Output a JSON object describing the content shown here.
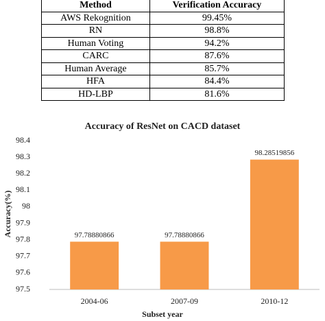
{
  "table": {
    "header": [
      "Method",
      "Verification Accuracy"
    ],
    "rows": [
      [
        "AWS Rekognition",
        "99.45%"
      ],
      [
        "RN",
        "98.8%"
      ],
      [
        "Human Voting",
        "94.2%"
      ],
      [
        "CARC",
        "87.6%"
      ],
      [
        "Human Average",
        "85.7%"
      ],
      [
        "HFA",
        "84.4%"
      ],
      [
        "HD-LBP",
        "81.6%"
      ]
    ]
  },
  "chart_data": {
    "type": "bar",
    "title": "Accuracy of ResNet on CACD dataset",
    "x_label": "Subset year",
    "y_label": "Accuracy(%)",
    "categories": [
      "2004-06",
      "2007-09",
      "2010-12"
    ],
    "values": [
      97.78880866,
      97.78880866,
      98.28519856
    ],
    "color": "#f79a48",
    "ylim": [
      97.5,
      98.4
    ],
    "yticks": [
      97.5,
      97.6,
      97.7,
      97.8,
      97.9,
      98,
      98.1,
      98.2,
      98.3,
      98.4
    ],
    "grid": false
  }
}
